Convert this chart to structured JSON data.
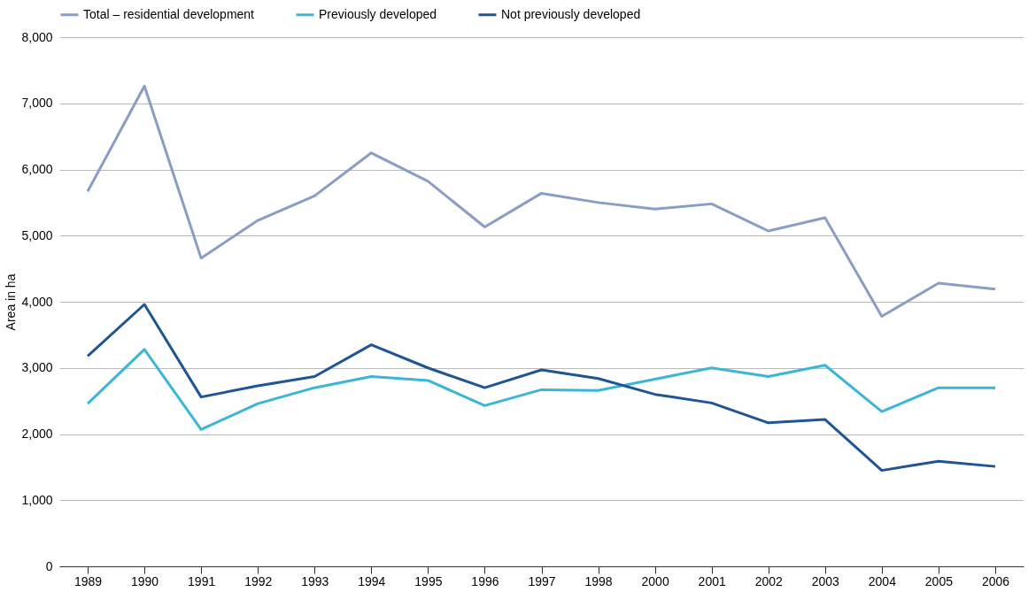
{
  "chart_data": {
    "type": "line",
    "ylabel": "Area in ha",
    "categories": [
      "1989",
      "1990",
      "1991",
      "1992",
      "1993",
      "1994",
      "1995",
      "1996",
      "1997",
      "1998",
      "2000",
      "2001",
      "2002",
      "2003",
      "2004",
      "2005",
      "2006"
    ],
    "series": [
      {
        "name": "Total – residential development",
        "color": "#8a9dc6",
        "values": [
          5670,
          7260,
          4660,
          5230,
          5600,
          6250,
          5820,
          5130,
          5640,
          5500,
          5400,
          5480,
          5070,
          5270,
          3780,
          4280,
          4190
        ]
      },
      {
        "name": "Previously developed",
        "color": "#3bb5d8",
        "values": [
          2460,
          3280,
          2070,
          2460,
          2700,
          2870,
          2810,
          2430,
          2670,
          2660,
          2830,
          3000,
          2870,
          3040,
          2340,
          2700,
          2700
        ]
      },
      {
        "name": "Not previously developed",
        "color": "#1f5597",
        "values": [
          3180,
          3960,
          2560,
          2730,
          2870,
          3350,
          3000,
          2700,
          2970,
          2840,
          2600,
          2470,
          2170,
          2220,
          1450,
          1590,
          1510
        ]
      }
    ],
    "ylim": [
      0,
      8000
    ],
    "yticks": [
      0,
      {
        "value": 1000,
        "label": "1,000"
      },
      {
        "value": 2000,
        "label": "2,000"
      },
      {
        "value": 3000,
        "label": "3,000"
      },
      {
        "value": 4000,
        "label": "4,000"
      },
      {
        "value": 5000,
        "label": "5,000"
      },
      {
        "value": 6000,
        "label": "6,000"
      },
      {
        "value": 7000,
        "label": "7,000"
      },
      {
        "value": 8000,
        "label": "8,000"
      }
    ],
    "grid": "y",
    "legend": "top",
    "marker": "none",
    "line_style": "solid"
  }
}
